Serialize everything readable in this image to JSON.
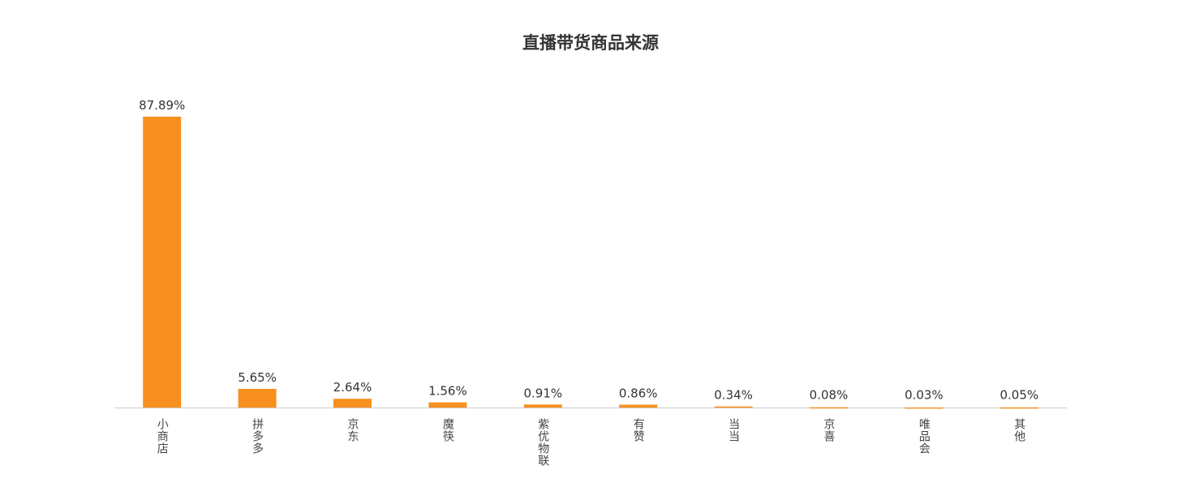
{
  "chart_data": {
    "type": "bar",
    "title": "直播带货商品来源",
    "categories": [
      "小商店",
      "拼多多",
      "京东",
      "魔筷",
      "紫优物联",
      "有赞",
      "当当",
      "京喜",
      "唯品会",
      "其他"
    ],
    "values": [
      87.89,
      5.65,
      2.64,
      1.56,
      0.91,
      0.86,
      0.34,
      0.08,
      0.03,
      0.05
    ],
    "value_labels": [
      "87.89%",
      "5.65%",
      "2.64%",
      "1.56%",
      "0.91%",
      "0.86%",
      "0.34%",
      "0.08%",
      "0.03%",
      "0.05%"
    ],
    "color": "#f7901e"
  }
}
